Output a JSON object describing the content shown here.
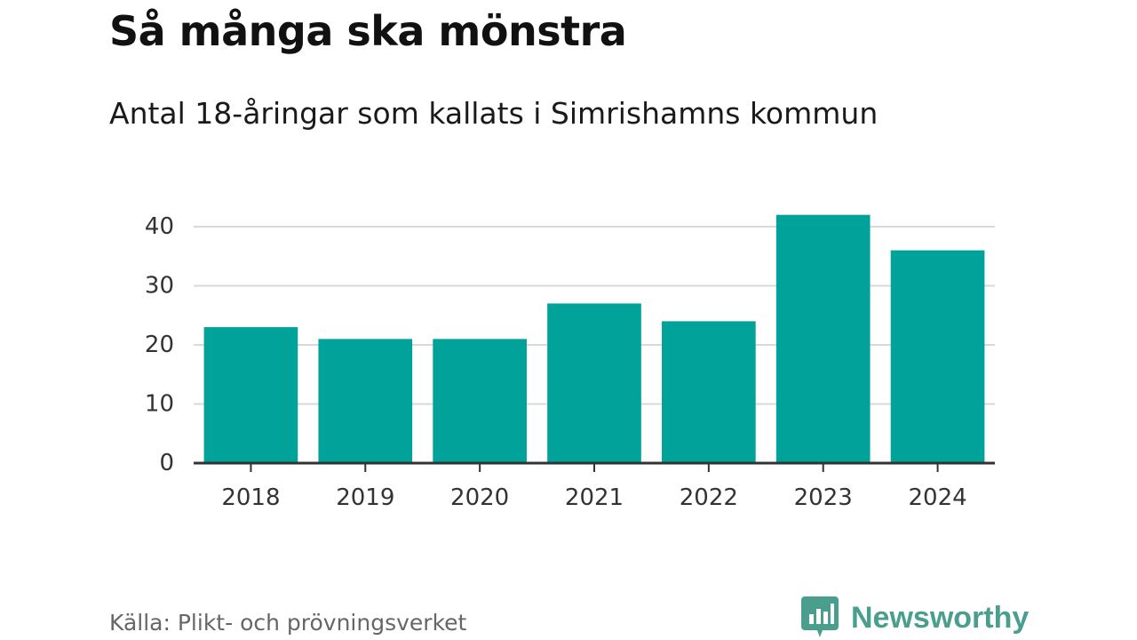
{
  "chart_data": {
    "type": "bar",
    "title": "Så många ska mönstra",
    "subtitle": "Antal 18-åringar som kallats i Simrishamns kommun",
    "xlabel": "",
    "ylabel": "",
    "categories": [
      "2018",
      "2019",
      "2020",
      "2021",
      "2022",
      "2023",
      "2024"
    ],
    "values": [
      23,
      21,
      21,
      27,
      24,
      42,
      36
    ],
    "ylim": [
      0,
      40
    ],
    "yticks": [
      0,
      10,
      20,
      30,
      40
    ],
    "grid": true,
    "legend": "none",
    "bar_color": "#00a29a"
  },
  "footer": {
    "source": "Källa: Plikt- och prövningsverket",
    "brand": "Newsworthy",
    "brand_icon": "newsworthy-logo-icon",
    "brand_color": "#4a9e8e"
  }
}
